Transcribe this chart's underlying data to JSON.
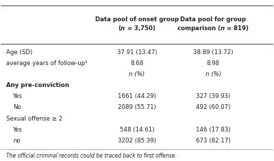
{
  "col1_header": "Data pool of onset group\n(n = 3,750)",
  "col2_header": "Data pool for group\ncomparison (n = 819)",
  "rows": [
    {
      "label": "Age (SD)",
      "bold": false,
      "indent": false,
      "col1": "37.91 (13.47)",
      "col2": "38.89 (13.72)"
    },
    {
      "label": "average years of follow-up¹",
      "bold": false,
      "indent": false,
      "col1": "8.68",
      "col2": "8.98"
    },
    {
      "label": "",
      "bold": false,
      "indent": false,
      "col1": "n (%)",
      "col2": "n (%)",
      "italic_vals": true
    },
    {
      "label": "Any pre-conviction",
      "bold": true,
      "indent": false,
      "col1": "",
      "col2": ""
    },
    {
      "label": "Yes",
      "bold": false,
      "indent": true,
      "col1": "1661 (44.29)",
      "col2": "327 (39.93)"
    },
    {
      "label": "No",
      "bold": false,
      "indent": true,
      "col1": "2089 (55.71)",
      "col2": "492 (60.07)"
    },
    {
      "label": "Sexual offense ≥ 2",
      "bold": false,
      "indent": false,
      "col1": "",
      "col2": ""
    },
    {
      "label": "Yes",
      "bold": false,
      "indent": true,
      "col1": "548 (14.61)",
      "col2": "146 (17.83)"
    },
    {
      "label": "no",
      "bold": false,
      "indent": true,
      "col1": "3202 (85.39)",
      "col2": "673 (82.17)"
    }
  ],
  "footnote": "The official criminal records could be traced back to first offense.",
  "bg_color": "#ffffff",
  "text_color": "#222222",
  "line_color": "#aaaaaa",
  "header_line_color": "#555555"
}
